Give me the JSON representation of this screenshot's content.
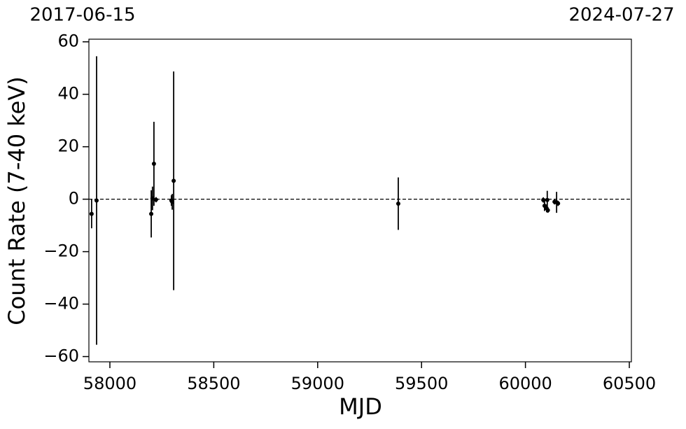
{
  "chart_data": {
    "type": "errorbar",
    "xlabel": "MJD",
    "ylabel": "Count Rate (7-40 keV)",
    "annotations": [
      "2017-06-15",
      "2024-07-27"
    ],
    "x": [
      57912,
      57936,
      58199,
      58205,
      58212,
      58222,
      58296,
      58300,
      58307,
      59388,
      60086,
      60092,
      60102,
      60105,
      60108,
      60140,
      60150,
      60157
    ],
    "values": [
      -5.6,
      -0.5,
      -5.6,
      0.3,
      13.5,
      -0.2,
      -0.5,
      -1,
      7,
      -1.7,
      -0.3,
      -2.5,
      -3.5,
      -0.3,
      -4.2,
      -1,
      -1.2,
      -1.6
    ],
    "errors": [
      5.5,
      55,
      9,
      4.5,
      16,
      1,
      2,
      3,
      41.7,
      10,
      1,
      2,
      1.5,
      3.5,
      1,
      1,
      4,
      1
    ],
    "color": "#000000",
    "reference_line": 0,
    "xlim": [
      57899,
      60510
    ],
    "ylim": [
      -62,
      61
    ],
    "xticks": [
      58000,
      58500,
      59000,
      59500,
      60000,
      60500
    ],
    "yticks": [
      {
        "value": -60,
        "label": "−60"
      },
      {
        "value": -40,
        "label": "−40"
      },
      {
        "value": -20,
        "label": "−20"
      },
      0,
      20,
      40,
      60
    ]
  }
}
